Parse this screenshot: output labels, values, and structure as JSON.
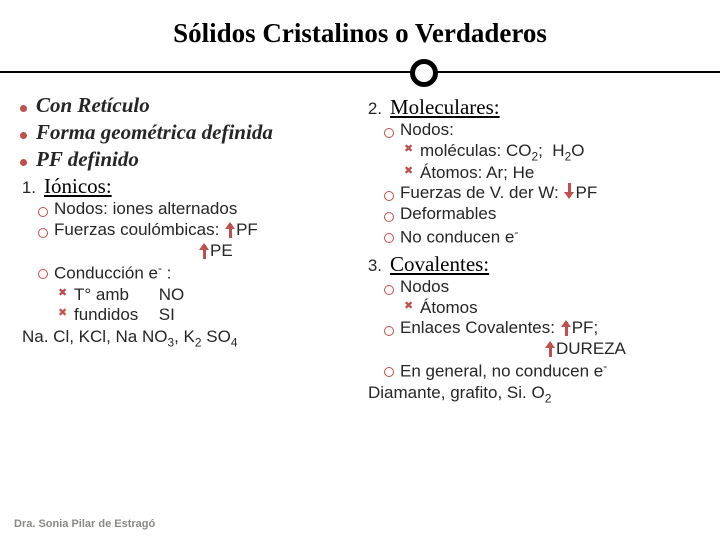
{
  "title": {
    "text": "Sólidos Cristalinos o Verdaderos",
    "fontsize": 27,
    "color": "#000000"
  },
  "bullet_color": "#c0504d",
  "circle_color": "#c0504d",
  "x_color": "#c0504d",
  "text_color": "#262626",
  "left": {
    "b1": "Con Retículo",
    "b2": "Forma geométrica definida",
    "b3": "PF definido",
    "num1": "1.",
    "h1": "Iónicos:",
    "c1": "Nodos: iones alternados",
    "c2a": "Fuerzas coulómbicas:",
    "c2b": "PF",
    "c2c": "PE",
    "c3a": "Conducción e",
    "c3b": " :",
    "x1a": "T° amb",
    "x1b": "NO",
    "x2a": "fundidos",
    "x2b": "SI",
    "line": "Na. Cl, KCl, Na NO₃, K₂ SO₄"
  },
  "right": {
    "num2": "2.",
    "h2": "Moleculares:",
    "c1": "Nodos:",
    "x1": "moléculas: CO₂;  H₂O",
    "x2": "Átomos: Ar; He",
    "c2a": "Fuerzas de V. der W:",
    "c2b": "PF",
    "c3": "Deformables",
    "c4": "No conducen e⁻",
    "num3": "3.",
    "h3": "Covalentes:",
    "c5": "Nodos",
    "x3": "Átomos",
    "c6a": "Enlaces Covalentes:",
    "c6b": "PF;",
    "c6c": "DUREZA",
    "c7": "En general, no conducen e⁻",
    "line": "Diamante, grafito, Si. O₂"
  },
  "footer": {
    "text": "Dra. Sonia Pilar de Estragó",
    "fontsize": 11,
    "color": "#8a8986"
  },
  "style": {
    "body_fontsize": 19,
    "italic_fontsize": 21,
    "heading_fontsize": 21,
    "sub_fontsize": 17
  }
}
